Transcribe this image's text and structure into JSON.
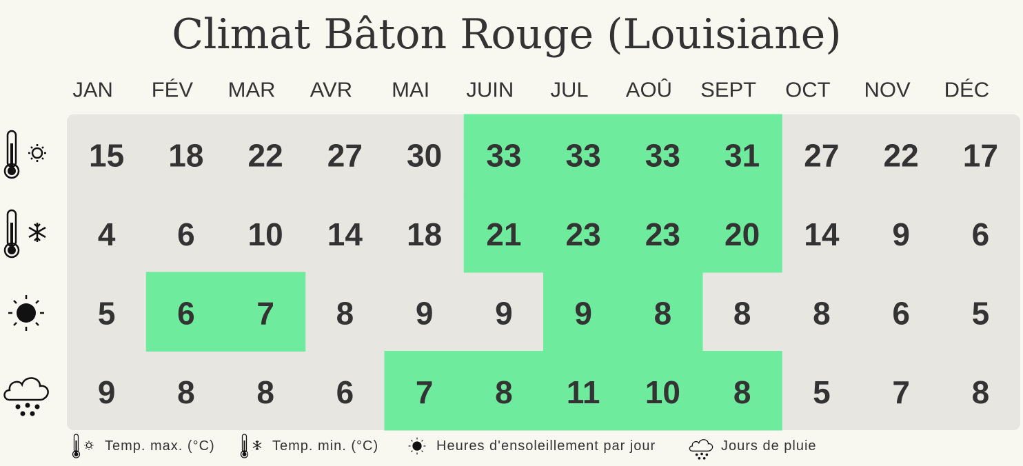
{
  "title": "Climat Bâton Rouge (Louisiane)",
  "months": [
    "JAN",
    "FÉV",
    "MAR",
    "AVR",
    "MAI",
    "JUIN",
    "JUL",
    "AOÛ",
    "SEPT",
    "OCT",
    "NOV",
    "DÉC"
  ],
  "rows": [
    {
      "values": [
        15,
        18,
        22,
        27,
        30,
        33,
        33,
        33,
        31,
        27,
        22,
        17
      ],
      "highlight": [
        false,
        false,
        false,
        false,
        false,
        true,
        true,
        true,
        true,
        false,
        false,
        false
      ]
    },
    {
      "values": [
        4,
        6,
        10,
        14,
        18,
        21,
        23,
        23,
        20,
        14,
        9,
        6
      ],
      "highlight": [
        false,
        false,
        false,
        false,
        false,
        true,
        true,
        true,
        true,
        false,
        false,
        false
      ]
    },
    {
      "values": [
        5,
        6,
        7,
        8,
        9,
        9,
        9,
        8,
        8,
        8,
        6,
        5
      ],
      "highlight": [
        false,
        true,
        true,
        false,
        false,
        false,
        true,
        true,
        false,
        false,
        false,
        false
      ]
    },
    {
      "values": [
        9,
        8,
        8,
        6,
        7,
        8,
        11,
        10,
        8,
        5,
        7,
        8
      ],
      "highlight": [
        false,
        false,
        false,
        false,
        true,
        true,
        true,
        true,
        true,
        false,
        false,
        false
      ]
    }
  ],
  "legend": [
    "Temp. max. (°C)",
    "Temp. min. (°C)",
    "Heures d'ensoleillement par jour",
    "Jours de pluie"
  ],
  "highlight_color": "#6eeb9c"
}
